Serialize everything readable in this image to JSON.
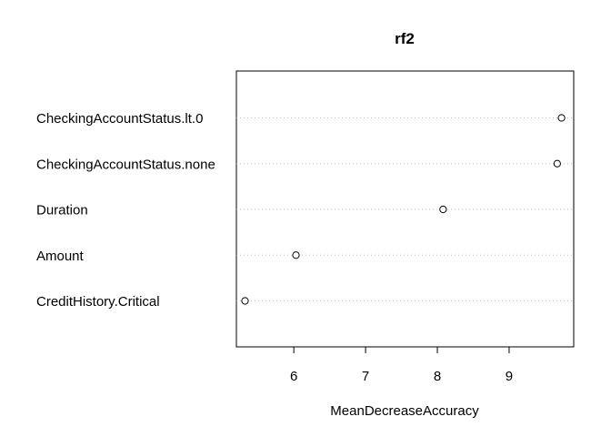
{
  "chart_data": {
    "type": "scatter",
    "title": "rf2",
    "xlabel": "MeanDecreaseAccuracy",
    "ylabel": "",
    "xlim": [
      5.2,
      9.9
    ],
    "xticks": [
      "6",
      "7",
      "8",
      "9"
    ],
    "grid": "dotted horizontal",
    "points": [
      {
        "label": "CheckingAccountStatus.lt.0",
        "value": 9.73
      },
      {
        "label": "CheckingAccountStatus.none",
        "value": 9.67
      },
      {
        "label": "Duration",
        "value": 8.08
      },
      {
        "label": "Amount",
        "value": 6.03
      },
      {
        "label": "CreditHistory.Critical",
        "value": 5.32
      }
    ]
  }
}
